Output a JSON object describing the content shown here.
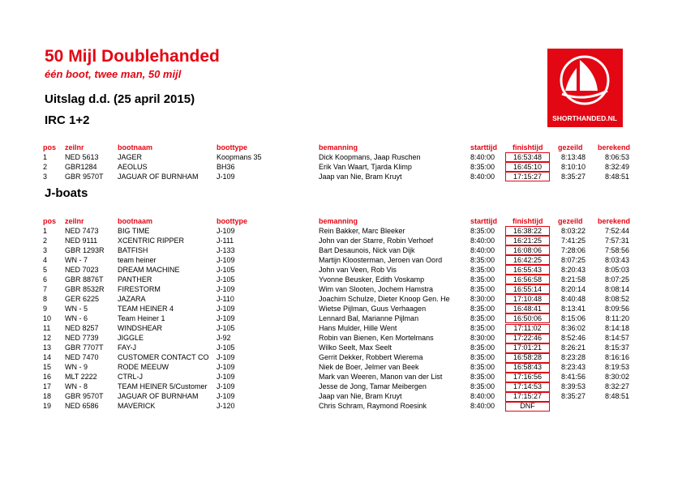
{
  "header": {
    "title": "50 Mijl Doublehanded",
    "subtitle": "één boot, twee man, 50 mijl",
    "result_date": "Uitslag d.d. (25 april 2015)",
    "logo_text": "SHORTHANDED.NL"
  },
  "columns": [
    "pos",
    "zeilnr",
    "bootnaam",
    "boottype",
    "bemanning",
    "starttijd",
    "finishtijd",
    "gezeild",
    "berekend"
  ],
  "tables": [
    {
      "title": "IRC 1+2",
      "rows": [
        [
          "1",
          "NED 5613",
          "JAGER",
          "Koopmans 35",
          "Dick Koopmans, Jaap Ruschen",
          "8:40:00",
          "16:53:48",
          "8:13:48",
          "8:06:53"
        ],
        [
          "2",
          "GBR1284",
          "AEOLUS",
          "BH36",
          "Erik Van Waart, Tjarda Klimp",
          "8:35:00",
          "16:45:10",
          "8:10:10",
          "8:32:49"
        ],
        [
          "3",
          "GBR 9570T",
          "JAGUAR OF BURNHAM",
          "J-109",
          "Jaap van  Nie, Bram Kruyt",
          "8:40:00",
          "17:15:27",
          "8:35:27",
          "8:48:51"
        ]
      ]
    },
    {
      "title": "J-boats",
      "rows": [
        [
          "1",
          "NED 7473",
          "BIG TIME",
          "J-109",
          "Rein Bakker, Marc Bleeker",
          "8:35:00",
          "16:38:22",
          "8:03:22",
          "7:52:44"
        ],
        [
          "2",
          "NED 9111",
          "XCENTRIC RIPPER",
          "J-111",
          "John  van der Starre, Robin Verhoef",
          "8:40:00",
          "16:21:25",
          "7:41:25",
          "7:57:31"
        ],
        [
          "3",
          "GBR 1293R",
          "BATFISH",
          "J-133",
          "Bart Desaunois, Nick van Dijk",
          "8:40:00",
          "16:08:06",
          "7:28:06",
          "7:58:56"
        ],
        [
          "4",
          "WN - 7",
          "team heiner",
          "J-109",
          "Martijn Kloosterman, Jeroen van  Oord",
          "8:35:00",
          "16:42:25",
          "8:07:25",
          "8:03:43"
        ],
        [
          "5",
          "NED 7023",
          "DREAM MACHINE",
          "J-105",
          "John van Veen, Rob Vis",
          "8:35:00",
          "16:55:43",
          "8:20:43",
          "8:05:03"
        ],
        [
          "6",
          "GBR 8876T",
          "PANTHER",
          "J-105",
          "Yvonne Beusker, Edith Voskamp",
          "8:35:00",
          "16:56:58",
          "8:21:58",
          "8:07:25"
        ],
        [
          "7",
          "GBR 8532R",
          "FIRESTORM",
          "J-109",
          "Wim van Slooten, Jochem Hamstra",
          "8:35:00",
          "16:55:14",
          "8:20:14",
          "8:08:14"
        ],
        [
          "8",
          "GER 6225",
          "JAZARA",
          "J-110",
          "Joachim Schulze, Dieter Knoop Gen. He",
          "8:30:00",
          "17:10:48",
          "8:40:48",
          "8:08:52"
        ],
        [
          "9",
          "WN - 5",
          "TEAM HEINER 4",
          "J-109",
          "Wietse Pijlman, Guus Verhaagen",
          "8:35:00",
          "16:48:41",
          "8:13:41",
          "8:09:56"
        ],
        [
          "10",
          "WN - 6",
          "Team Heiner 1",
          "J-109",
          "Lennard Bal, Marianne Pijlman",
          "8:35:00",
          "16:50:06",
          "8:15:06",
          "8:11:20"
        ],
        [
          "11",
          "NED 8257",
          "WINDSHEAR",
          "J-105",
          "Hans  Mulder, Hille Went",
          "8:35:00",
          "17:11:02",
          "8:36:02",
          "8:14:18"
        ],
        [
          "12",
          "NED 7739",
          "JIGGLE",
          "J-92",
          "Robin van Bienen, Ken Mortelmans",
          "8:30:00",
          "17:22:46",
          "8:52:46",
          "8:14:57"
        ],
        [
          "13",
          "GBR 7707T",
          "FAY-J",
          "J-105",
          "Wilko  Seelt, Max  Seelt",
          "8:35:00",
          "17:01:21",
          "8:26:21",
          "8:15:37"
        ],
        [
          "14",
          "NED 7470",
          "CUSTOMER CONTACT CO",
          "J-109",
          "Gerrit Dekker, Robbert Wierema",
          "8:35:00",
          "16:58:28",
          "8:23:28",
          "8:16:16"
        ],
        [
          "15",
          "WN - 9",
          "RODE MEEUW",
          "J-109",
          "Niek de Boer, Jelmer van  Beek",
          "8:35:00",
          "16:58:43",
          "8:23:43",
          "8:19:53"
        ],
        [
          "16",
          "MLT 2222",
          "CTRL-J",
          "J-109",
          "Mark van Weeren, Manon van der List",
          "8:35:00",
          "17:16:56",
          "8:41:56",
          "8:30:02"
        ],
        [
          "17",
          "WN - 8",
          "TEAM HEINER 5/Customer",
          "J-109",
          "Jesse de Jong, Tamar Meibergen",
          "8:35:00",
          "17:14:53",
          "8:39:53",
          "8:32:27"
        ],
        [
          "18",
          "GBR 9570T",
          "JAGUAR OF BURNHAM",
          "J-109",
          "Jaap van  Nie, Bram Kruyt",
          "8:40:00",
          "17:15:27",
          "8:35:27",
          "8:48:51"
        ],
        [
          "19",
          "NED 6586",
          "MAVERICK",
          "J-120",
          "Chris Schram, Raymond Roesink",
          "8:40:00",
          "DNF"
        ]
      ]
    }
  ]
}
